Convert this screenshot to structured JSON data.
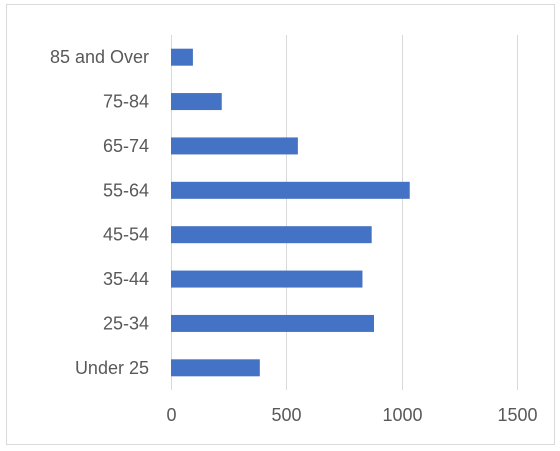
{
  "chart_data": {
    "type": "bar",
    "orientation": "horizontal",
    "title": "",
    "xlabel": "",
    "ylabel": "",
    "categories": [
      "85 and Over",
      "75-84",
      "65-74",
      "55-64",
      "45-54",
      "35-44",
      "25-34",
      "Under 25"
    ],
    "values": [
      95,
      220,
      550,
      1035,
      870,
      830,
      880,
      385
    ],
    "xlim": [
      0,
      1500
    ],
    "xticks": [
      0,
      500,
      1000,
      1500
    ],
    "xtick_labels": [
      "0",
      "500",
      "1000",
      "1500"
    ],
    "grid": "vertical",
    "legend": "none",
    "colors": {
      "bar": "#4472c4",
      "gridline": "#d9d9d9",
      "text": "#595959",
      "border": "#d9d9d9"
    }
  }
}
